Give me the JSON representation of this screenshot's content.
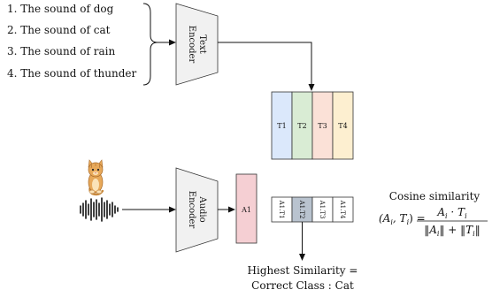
{
  "prompts": [
    "1. The sound of dog",
    "2. The sound of cat",
    "3. The sound of rain",
    "4. The sound of thunder"
  ],
  "text_encoder": {
    "line1": "Text",
    "line2": "Encoder"
  },
  "audio_encoder": {
    "line1": "Audio",
    "line2": "Encoder"
  },
  "text_embeddings": {
    "labels": [
      "T1",
      "T2",
      "T3",
      "T4"
    ],
    "colors": [
      "#dbe8fb",
      "#d9ecd4",
      "#fbe1d7",
      "#fdefd0"
    ]
  },
  "audio_embedding": {
    "label": "A1",
    "color": "#f5cfd3"
  },
  "similarity_cells": {
    "labels": [
      "A1.T1",
      "A1.T2",
      "A1.T3",
      "A1.T4"
    ],
    "highlight_index": 1,
    "highlight_color": "#b9c3cf"
  },
  "formula": {
    "title": "Cosine similarity",
    "lhs": "(A",
    "lhs_sub_a": "i",
    "lhs_mid": ", T",
    "lhs_sub_t": "i",
    "lhs_end": ") =",
    "num_a": "A",
    "num_sub_a": "i",
    "num_dot": " · T",
    "num_sub_t": "i",
    "den_a": "‖A",
    "den_sub_a": "i",
    "den_mid": "‖ + ‖T",
    "den_sub_t": "i",
    "den_end": "‖"
  },
  "result": {
    "line1": "Highest Similarity =",
    "line2": "Correct Class : Cat"
  }
}
